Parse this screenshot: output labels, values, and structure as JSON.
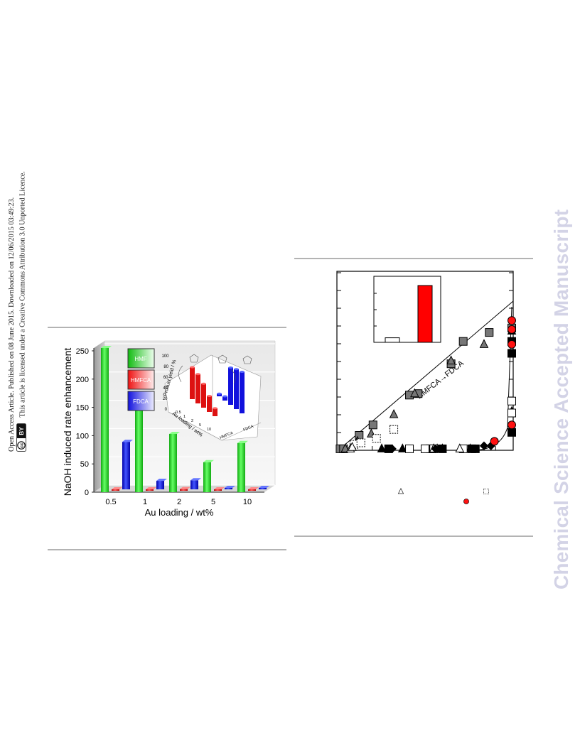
{
  "side_notice": {
    "line1": "Open Access Article. Published on 08 June 2015. Downloaded on 12/06/2015 03:49:23.",
    "line2": "This article is licensed under a Creative Commons Attribution 3.0 Unported Licence.",
    "cc_badge": "cc",
    "by_badge": "BY"
  },
  "watermark": "Chemical Science Accepted Manuscript",
  "chart_data": [
    {
      "type": "bar",
      "ylabel": "NaOH induced rate enhancement",
      "xlabel": "Au loading / wt%",
      "categories": [
        "0.5",
        "1",
        "2",
        "5",
        "10"
      ],
      "ylim": [
        0,
        250
      ],
      "yticks": [
        "0",
        "50",
        "100",
        "150",
        "200",
        "250"
      ],
      "series": [
        {
          "name": "HMF",
          "values": [
            255,
            145,
            103,
            53,
            87
          ],
          "color": "#22cc22"
        },
        {
          "name": "HMFCA",
          "values": [
            1,
            1,
            3,
            1,
            1
          ],
          "color": "#ee1111"
        },
        {
          "name": "FDCA",
          "values": [
            84,
            15,
            16,
            2,
            2
          ],
          "color": "#1111dd"
        }
      ],
      "legend_position": "top-center",
      "inset": {
        "type": "bar",
        "ylabel": "Product yield / %",
        "yticks": [
          "0",
          "20",
          "40",
          "60",
          "80",
          "100"
        ],
        "xlabel": "Au loading / wt%",
        "xticks": [
          "0.5",
          "1",
          "2",
          "5",
          "10"
        ],
        "series_labels": [
          "HMFCA",
          "FDCA"
        ],
        "series": [
          {
            "name": "HMFCA",
            "values": [
              60,
              55,
              45,
              30,
              15
            ],
            "color": "#dd1111"
          },
          {
            "name": "FDCA",
            "values": [
              5,
              8,
              70,
              75,
              78
            ],
            "color": "#1111dd"
          }
        ]
      }
    },
    {
      "type": "scatter",
      "annotation": "HMFCA→FDCA",
      "inset": {
        "type": "bar",
        "values": [
          8,
          100
        ],
        "colors": [
          "#ffffff",
          "#ff0000"
        ]
      },
      "series": [
        {
          "marker": "square-gray",
          "points": [
            [
              0.01,
              0.01
            ],
            [
              0.03,
              0.01
            ],
            [
              0.12,
              0.1
            ],
            [
              0.2,
              0.17
            ],
            [
              0.41,
              0.37
            ],
            [
              0.46,
              0.38
            ],
            [
              0.65,
              0.58
            ],
            [
              0.72,
              0.73
            ],
            [
              0.87,
              0.79
            ],
            [
              1.0,
              0.82
            ]
          ]
        },
        {
          "marker": "triangle-gray",
          "points": [
            [
              0.04,
              0.01
            ],
            [
              0.11,
              0.06
            ],
            [
              0.19,
              0.11
            ],
            [
              0.32,
              0.24
            ],
            [
              0.44,
              0.38
            ],
            [
              0.65,
              0.6
            ],
            [
              0.84,
              0.71
            ]
          ]
        },
        {
          "marker": "square-dashed",
          "points": [
            [
              0.09,
              0.04
            ],
            [
              0.13,
              0.05
            ],
            [
              0.22,
              0.08
            ],
            [
              0.32,
              0.14
            ]
          ]
        },
        {
          "marker": "triangle-black",
          "points": [
            [
              0.25,
              0.01
            ],
            [
              0.37,
              0.01
            ],
            [
              0.55,
              0.01
            ],
            [
              0.57,
              0.01
            ],
            [
              0.6,
              0.01
            ],
            [
              0.76,
              0.01
            ],
            [
              1.0,
              0.26
            ],
            [
              1.0,
              0.8
            ]
          ]
        },
        {
          "marker": "square-black",
          "points": [
            [
              0.29,
              0.01
            ],
            [
              0.53,
              0.01
            ],
            [
              0.6,
              0.01
            ],
            [
              0.77,
              0.01
            ],
            [
              0.79,
              0.01
            ],
            [
              1.0,
              0.12
            ],
            [
              1.0,
              0.65
            ],
            [
              1.0,
              0.73
            ]
          ]
        },
        {
          "marker": "square-white",
          "points": [
            [
              0.41,
              0.01
            ],
            [
              0.5,
              0.01
            ],
            [
              0.55,
              0.01
            ],
            [
              0.72,
              0.01
            ],
            [
              1.0,
              0.25
            ],
            [
              1.0,
              0.33
            ]
          ]
        },
        {
          "marker": "triangle-white",
          "points": [
            [
              0.07,
              0.01
            ],
            [
              0.08,
              0.02
            ],
            [
              0.55,
              0.01
            ],
            [
              0.7,
              0.01
            ]
          ]
        },
        {
          "marker": "diamond-black",
          "points": [
            [
              0.31,
              0.01
            ],
            [
              0.56,
              0.01
            ],
            [
              0.84,
              0.03
            ],
            [
              0.88,
              0.03
            ]
          ]
        },
        {
          "marker": "circle-red",
          "points": [
            [
              0.9,
              0.06
            ],
            [
              1.0,
              0.17
            ],
            [
              1.0,
              0.71
            ],
            [
              1.0,
              0.81
            ],
            [
              1.0,
              0.87
            ]
          ]
        }
      ],
      "legend_markers": [
        "triangle-white",
        "square-dashed",
        "circle-red"
      ]
    }
  ]
}
